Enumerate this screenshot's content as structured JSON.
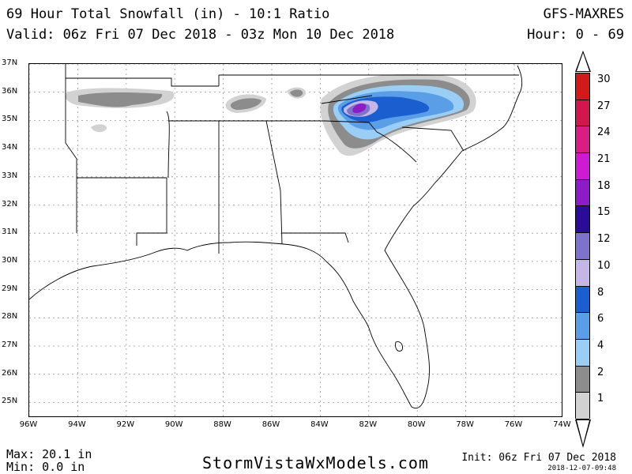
{
  "header": {
    "title": "69 Hour Total Snowfall (in) - 10:1 Ratio",
    "valid": "Valid: 06z Fri 07 Dec 2018 - 03z Mon 10 Dec 2018",
    "model": "GFS-MAXRES",
    "hour": "Hour: 0 - 69"
  },
  "map": {
    "lat_labels": [
      "37N",
      "36N",
      "35N",
      "34N",
      "33N",
      "32N",
      "31N",
      "30N",
      "29N",
      "28N",
      "27N",
      "26N",
      "25N"
    ],
    "lon_labels": [
      "96W",
      "94W",
      "92W",
      "90W",
      "88W",
      "86W",
      "84W",
      "82W",
      "80W",
      "78W",
      "76W",
      "74W"
    ],
    "lat_range": [
      24.5,
      37
    ],
    "lon_range": [
      -96,
      -74
    ],
    "grid_lines": "dotted"
  },
  "legend": {
    "items": [
      {
        "label": "30",
        "color": "#d21a1a"
      },
      {
        "label": "27",
        "color": "#d2174e"
      },
      {
        "label": "24",
        "color": "#d81e82"
      },
      {
        "label": "21",
        "color": "#cc1cd2"
      },
      {
        "label": "18",
        "color": "#8e1cc6"
      },
      {
        "label": "15",
        "color": "#2a0c96"
      },
      {
        "label": "12",
        "color": "#7e72cc"
      },
      {
        "label": "10",
        "color": "#c4b6e6"
      },
      {
        "label": "8",
        "color": "#1a5ed0"
      },
      {
        "label": "6",
        "color": "#5a9ee8"
      },
      {
        "label": "4",
        "color": "#9acef6"
      },
      {
        "label": "2",
        "color": "#8c8c8c"
      },
      {
        "label": "1",
        "color": "#d2d2d2"
      }
    ]
  },
  "footer": {
    "max": "Max: 20.1 in",
    "min": "Min: 0.0 in",
    "site": "StormVistaWxModels.com",
    "init": "Init: 06z Fri 07 Dec 2018",
    "stamp": "2018-12-07-09:48"
  }
}
